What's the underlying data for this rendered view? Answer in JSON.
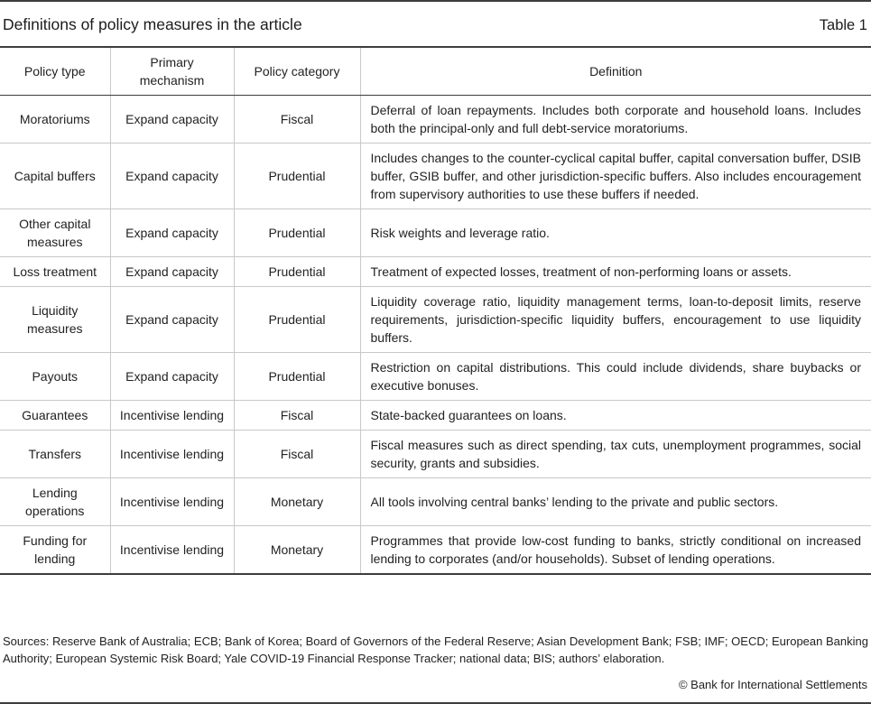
{
  "page": {
    "title": "Definitions of policy measures in the article",
    "table_label": "Table 1"
  },
  "table": {
    "columns": [
      "Policy type",
      "Primary mechanism",
      "Policy category",
      "Definition"
    ],
    "rows": [
      {
        "policy_type": "Moratoriums",
        "primary_mechanism": "Expand capacity",
        "policy_category": "Fiscal",
        "definition": "Deferral of loan repayments. Includes both corporate and household loans. Includes both the principal-only and full debt-service moratoriums."
      },
      {
        "policy_type": "Capital buffers",
        "primary_mechanism": "Expand capacity",
        "policy_category": "Prudential",
        "definition": "Includes changes to the counter-cyclical capital buffer, capital conversation buffer, DSIB buffer, GSIB buffer, and other jurisdiction-specific buffers. Also includes encouragement from supervisory authorities to use these buffers if needed."
      },
      {
        "policy_type": "Other capital measures",
        "primary_mechanism": "Expand capacity",
        "policy_category": "Prudential",
        "definition": "Risk weights and leverage ratio."
      },
      {
        "policy_type": "Loss treatment",
        "primary_mechanism": "Expand capacity",
        "policy_category": "Prudential",
        "definition": "Treatment of expected losses, treatment of non-performing loans or assets."
      },
      {
        "policy_type": "Liquidity measures",
        "primary_mechanism": "Expand capacity",
        "policy_category": "Prudential",
        "definition": "Liquidity coverage ratio, liquidity management terms, loan-to-deposit limits, reserve requirements, jurisdiction-specific liquidity buffers, encouragement to use liquidity buffers."
      },
      {
        "policy_type": "Payouts",
        "primary_mechanism": "Expand capacity",
        "policy_category": "Prudential",
        "definition": "Restriction on capital distributions. This could include dividends, share buybacks or executive bonuses."
      },
      {
        "policy_type": "Guarantees",
        "primary_mechanism": "Incentivise lending",
        "policy_category": "Fiscal",
        "definition": "State-backed guarantees on loans."
      },
      {
        "policy_type": "Transfers",
        "primary_mechanism": "Incentivise lending",
        "policy_category": "Fiscal",
        "definition": "Fiscal measures such as direct spending, tax cuts, unemployment programmes, social security, grants and subsidies."
      },
      {
        "policy_type": "Lending operations",
        "primary_mechanism": "Incentivise lending",
        "policy_category": "Monetary",
        "definition": "All tools involving central banks’ lending to the private and public sectors."
      },
      {
        "policy_type": "Funding for lending",
        "primary_mechanism": "Incentivise lending",
        "policy_category": "Monetary",
        "definition": "Programmes that provide low-cost funding to banks, strictly conditional on increased lending to corporates (and/or households). Subset of lending operations."
      }
    ]
  },
  "footer": {
    "sources": "Sources: Reserve Bank of Australia; ECB; Bank of Korea; Board of Governors of the Federal Reserve; Asian Development Bank; FSB; IMF; OECD; European Banking Authority; European Systemic Risk Board; Yale COVID-19 Financial Response Tracker; national data; BIS; authors’ elaboration.",
    "copyright": "© Bank for International Settlements"
  },
  "colors": {
    "rule_dark": "#3d3d3d",
    "rule_light": "#c8c8c8",
    "text": "#222222"
  }
}
